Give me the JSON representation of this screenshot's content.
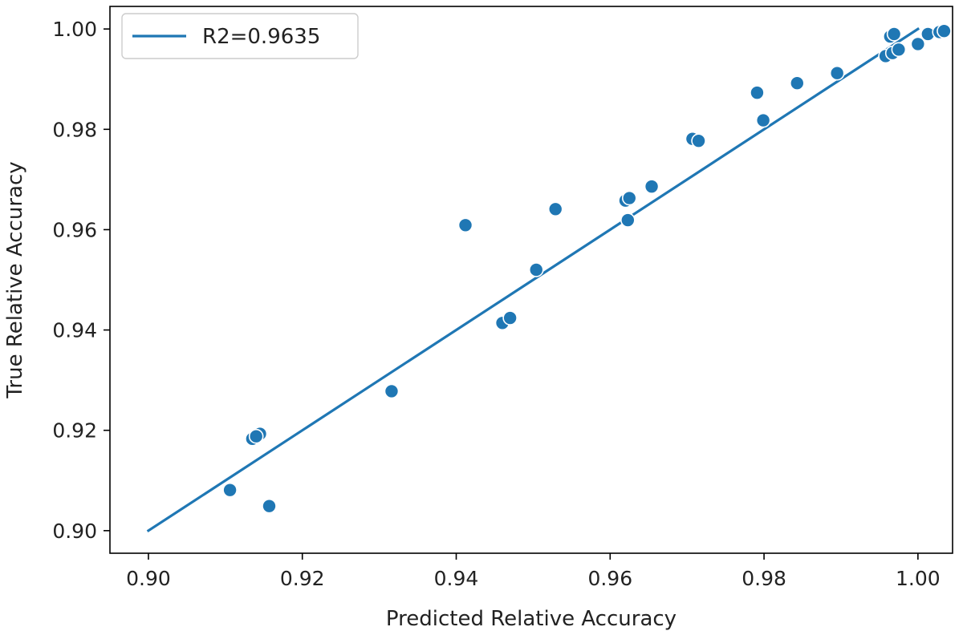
{
  "chart_data": {
    "type": "scatter",
    "title": "",
    "xlabel": "Predicted Relative Accuracy",
    "ylabel": "True Relative Accuracy",
    "xlim": [
      0.895,
      1.0045
    ],
    "ylim": [
      0.8955,
      1.0045
    ],
    "xticks": [
      0.9,
      0.92,
      0.94,
      0.96,
      0.98,
      1.0
    ],
    "yticks": [
      0.9,
      0.92,
      0.94,
      0.96,
      0.98,
      1.0
    ],
    "xtick_labels": [
      "0.90",
      "0.92",
      "0.94",
      "0.96",
      "0.98",
      "1.00"
    ],
    "ytick_labels": [
      "0.90",
      "0.92",
      "0.94",
      "0.96",
      "0.98",
      "1.00"
    ],
    "grid": false,
    "legend_position": "top-left",
    "marker_color": "#1f77b4",
    "line_color": "#1f77b4",
    "fit_line": {
      "name": "R2=0.9635",
      "x": [
        0.9,
        1.0
      ],
      "y": [
        0.9,
        1.0
      ]
    },
    "points": [
      {
        "x": 0.9106,
        "y": 0.9081
      },
      {
        "x": 0.9157,
        "y": 0.9049
      },
      {
        "x": 0.9135,
        "y": 0.9183
      },
      {
        "x": 0.9145,
        "y": 0.9193
      },
      {
        "x": 0.914,
        "y": 0.9188
      },
      {
        "x": 0.9316,
        "y": 0.9278
      },
      {
        "x": 0.9412,
        "y": 0.9609
      },
      {
        "x": 0.946,
        "y": 0.9414
      },
      {
        "x": 0.947,
        "y": 0.9424
      },
      {
        "x": 0.9504,
        "y": 0.952
      },
      {
        "x": 0.9529,
        "y": 0.9641
      },
      {
        "x": 0.962,
        "y": 0.9658
      },
      {
        "x": 0.9625,
        "y": 0.9663
      },
      {
        "x": 0.9623,
        "y": 0.9619
      },
      {
        "x": 0.9654,
        "y": 0.9686
      },
      {
        "x": 0.9707,
        "y": 0.9781
      },
      {
        "x": 0.9715,
        "y": 0.9777
      },
      {
        "x": 0.9791,
        "y": 0.9873
      },
      {
        "x": 0.9799,
        "y": 0.9818
      },
      {
        "x": 0.9843,
        "y": 0.9892
      },
      {
        "x": 0.9895,
        "y": 0.9912
      },
      {
        "x": 0.9958,
        "y": 0.9946
      },
      {
        "x": 0.9964,
        "y": 0.9985
      },
      {
        "x": 0.9967,
        "y": 0.9952
      },
      {
        "x": 0.9969,
        "y": 0.999
      },
      {
        "x": 0.9975,
        "y": 0.9959
      },
      {
        "x": 1.0,
        "y": 0.997
      },
      {
        "x": 1.0013,
        "y": 0.999
      },
      {
        "x": 1.0028,
        "y": 0.9994
      },
      {
        "x": 1.0034,
        "y": 0.9996
      }
    ]
  }
}
